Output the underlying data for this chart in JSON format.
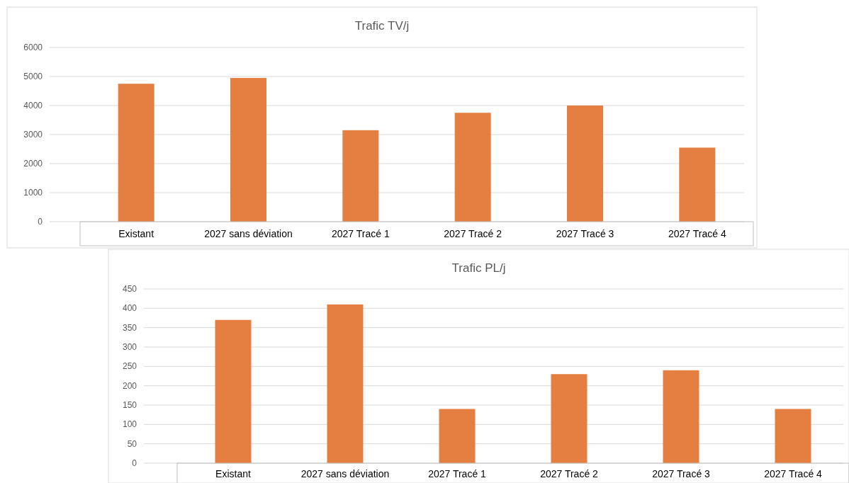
{
  "chart_data": [
    {
      "type": "bar",
      "title": "Trafic TV/j",
      "categories": [
        "Existant",
        "2027 sans déviation",
        "2027 Tracé 1",
        "2027 Tracé 2",
        "2027 Tracé 3",
        "2027 Tracé 4"
      ],
      "values": [
        4750,
        4950,
        3150,
        3750,
        4000,
        2550
      ],
      "color": "#e57f41",
      "ylim": [
        0,
        6000
      ],
      "yticks": [
        0,
        1000,
        2000,
        3000,
        4000,
        5000,
        6000
      ],
      "grid": "y"
    },
    {
      "type": "bar",
      "title": "Trafic PL/j",
      "categories": [
        "Existant",
        "2027 sans déviation",
        "2027 Tracé 1",
        "2027 Tracé 2",
        "2027 Tracé 3",
        "2027 Tracé 4"
      ],
      "values": [
        370,
        410,
        140,
        230,
        240,
        140
      ],
      "color": "#e57f41",
      "ylim": [
        0,
        450
      ],
      "yticks": [
        0,
        50,
        100,
        150,
        200,
        250,
        300,
        350,
        400,
        450
      ],
      "grid": "y"
    }
  ]
}
